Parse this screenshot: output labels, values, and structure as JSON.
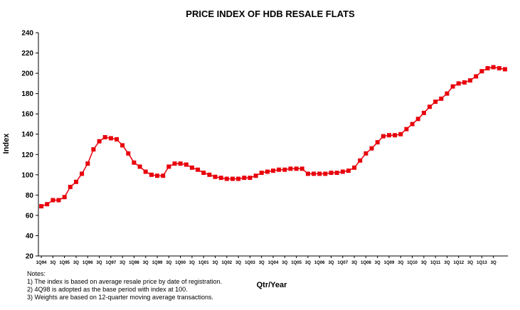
{
  "chart_data": {
    "type": "line",
    "title": "PRICE INDEX OF HDB RESALE FLATS",
    "xlabel": "Qtr/Year",
    "ylabel": "Index",
    "ylim": [
      20,
      240
    ],
    "yticks": [
      20,
      40,
      60,
      80,
      100,
      120,
      140,
      160,
      180,
      200,
      220,
      240
    ],
    "grid": false,
    "legend": "none",
    "series_color": "#e8000b",
    "xtick_labels": [
      "1Q94",
      "3Q",
      "1Q95",
      "3Q",
      "1Q96",
      "3Q",
      "1Q97",
      "3Q",
      "1Q98",
      "3Q",
      "1Q99",
      "3Q",
      "1Q00",
      "3Q",
      "1Q01",
      "3Q",
      "1Q02",
      "3Q",
      "1Q03",
      "3Q",
      "1Q04",
      "3Q",
      "1Q05",
      "3Q",
      "1Q06",
      "3Q",
      "1Q07",
      "3Q",
      "1Q08",
      "3Q",
      "1Q09",
      "3Q",
      "1Q10",
      "3Q",
      "1Q11",
      "3Q",
      "1Q12",
      "3Q",
      "1Q13",
      "3Q"
    ],
    "values": [
      69,
      71,
      75,
      75,
      78,
      88,
      93,
      101,
      111,
      125,
      133,
      137,
      136,
      135,
      129,
      121,
      112,
      108,
      103,
      100,
      99,
      99,
      108,
      111,
      111,
      110,
      107,
      105,
      102,
      100,
      98,
      97,
      96,
      96,
      96,
      97,
      97,
      99,
      102,
      103,
      104,
      105,
      105,
      106,
      106,
      106,
      101,
      101,
      101,
      101,
      102,
      102,
      103,
      104,
      107,
      114,
      121,
      126,
      132,
      138,
      139,
      139,
      140,
      145,
      150,
      155,
      161,
      167,
      172,
      175,
      180,
      187,
      190,
      191,
      193,
      197,
      202,
      205,
      206,
      205,
      204
    ]
  },
  "notes": {
    "heading": "Notes:",
    "lines": [
      "1) The index  is based on average resale price by date of registration.",
      "2) 4Q98 is adopted as the base period with index at 100.",
      "3) Weights are based on 12-quarter moving average transactions."
    ]
  }
}
